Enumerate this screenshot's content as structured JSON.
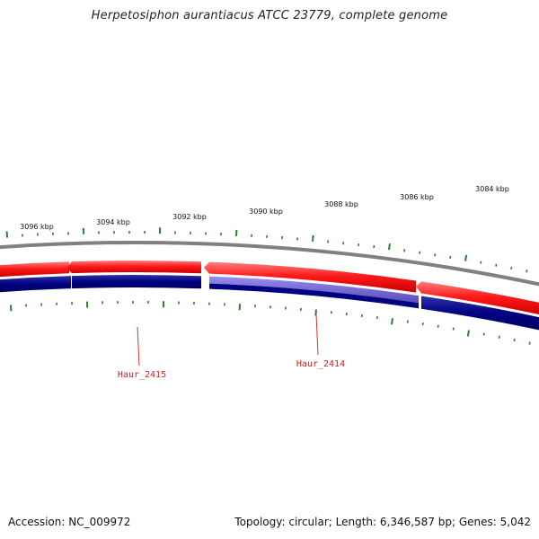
{
  "title": "Herpetosiphon aurantiacus ATCC 23779, complete genome",
  "footer": {
    "accession": "Accession: NC_009972",
    "stats": "Topology: circular; Length: 6,346,587 bp; Genes: 5,042"
  },
  "colors": {
    "backbone": "#808080",
    "forward_feature": "#ff1a1a",
    "reverse_feature": "#000080",
    "selected_reverse": "#6a5acd",
    "ticks": "#2e7d32",
    "label_line": "#e03030",
    "label_text": "#cc2020"
  },
  "scale_labels": [
    "3096 kbp",
    "3094 kbp",
    "3092 kbp",
    "3090 kbp",
    "3088 kbp",
    "3086 kbp",
    "3084 kbp"
  ],
  "gene_labels": [
    "Haur_2415",
    "Haur_2414"
  ]
}
